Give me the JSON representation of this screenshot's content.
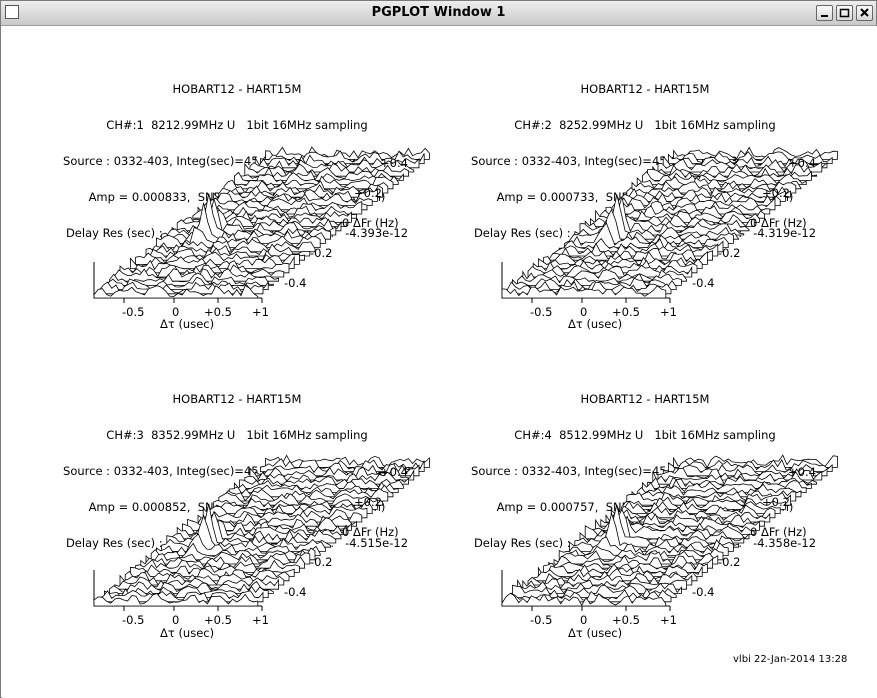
{
  "window": {
    "title": "PGPLOT Window 1",
    "controls": {
      "minimize": "minimize-icon",
      "maximize": "maximize-icon",
      "close": "close-icon"
    }
  },
  "panels": [
    {
      "lines": [
        "HOBART12 - HART15M",
        "CH#:1  8212.99MHz U   1bit 16MHz sampling",
        "Source : 0332-403, Integ(sec)=45.0, PRT:2013/099 12:42:12",
        "Amp = 0.000833,  SNR = 22.4  (no amp correction)",
        "Delay Res (sec) :   -4.975e-07    Rate Res(s/s) :   -4.393e-12"
      ],
      "x_ticks": [
        "-0.5",
        "0",
        "+0.5",
        "+1"
      ],
      "x_label": "Δτ (usec)",
      "y_ticks": [
        "+0.4",
        "+0.2",
        "0  ΔFr (Hz)",
        "-0.2",
        "-0.4"
      ]
    },
    {
      "lines": [
        "HOBART12 - HART15M",
        "CH#:2  8252.99MHz U   1bit 16MHz sampling",
        "Source : 0332-403, Integ(sec)=45.0, PRT:2013/099 12:42:12",
        "Amp = 0.000733,  SNR = 19.7  (no amp correction)",
        "Delay Res (sec) :   -4.954e-07    Rate Res(s/s) :   -4.319e-12"
      ],
      "x_ticks": [
        "-0.5",
        "0",
        "+0.5",
        "+1"
      ],
      "x_label": "Δτ (usec)",
      "y_ticks": [
        "+0.4",
        "+0.2",
        "0  ΔFr (Hz)",
        "-0.2",
        "-0.4"
      ]
    },
    {
      "lines": [
        "HOBART12 - HART15M",
        "CH#:3  8352.99MHz U   1bit 16MHz sampling",
        "Source : 0332-403, Integ(sec)=45.0, PRT:2013/099 12:42:12",
        "Amp = 0.000852,  SNR = 22.9  (no amp correction)",
        "Delay Res (sec) :   -5.002e-07    Rate Res(s/s) :   -4.515e-12"
      ],
      "x_ticks": [
        "-0.5",
        "0",
        "+0.5",
        "+1"
      ],
      "x_label": "Δτ (usec)",
      "y_ticks": [
        "+0.4",
        "+0.2",
        "0  ΔFr (Hz)",
        "-0.2",
        "-0.4"
      ]
    },
    {
      "lines": [
        "HOBART12 - HART15M",
        "CH#:4  8512.99MHz U   1bit 16MHz sampling",
        "Source : 0332-403, Integ(sec)=45.0, PRT:2013/099 12:42:12",
        "Amp = 0.000757,  SNR = 20.3  (no amp correction)",
        "Delay Res (sec) :   -5.000e-07    Rate Res(s/s) :   -4.358e-12"
      ],
      "x_ticks": [
        "-0.5",
        "0",
        "+0.5",
        "+1"
      ],
      "x_label": "Δτ (usec)",
      "y_ticks": [
        "+0.4",
        "+0.2",
        "0  ΔFr (Hz)",
        "-0.2",
        "-0.4"
      ]
    }
  ],
  "footer": "vlbi 22-Jan-2014 13:28"
}
